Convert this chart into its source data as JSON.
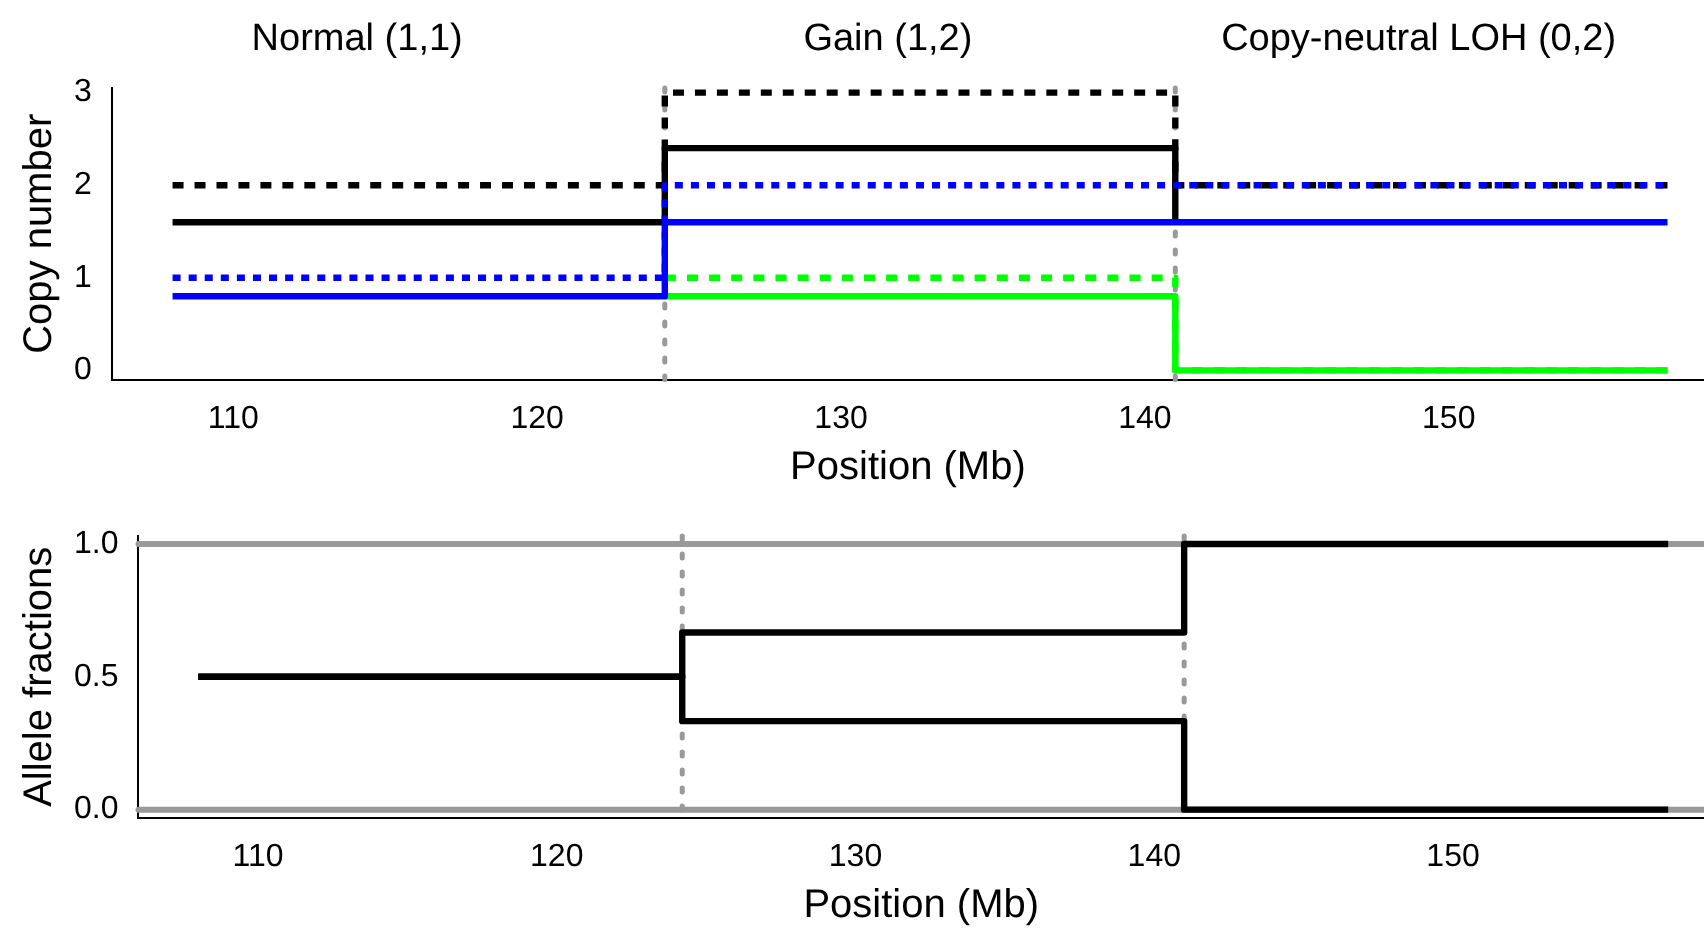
{
  "chart_data": [
    {
      "type": "step",
      "xlabel": "Position (Mb)",
      "ylabel": "Copy number",
      "xlim": [
        106,
        158.4
      ],
      "xticks": [
        110,
        120,
        130,
        140,
        150
      ],
      "ylim": [
        -0.1,
        3.05
      ],
      "yticks": [
        0,
        1,
        2,
        3
      ],
      "grid": false,
      "legend": false,
      "marker": "none",
      "annotations": [
        "Normal (1,1)",
        "Gain (1,2)",
        "Copy-neutral LOH (0,2)"
      ],
      "ref_lines": [
        {
          "axis": "x",
          "value": 124.2,
          "color": "#999999",
          "line_style": "dotted"
        },
        {
          "axis": "x",
          "value": 141,
          "color": "#999999",
          "line_style": "dotted"
        }
      ],
      "series": [
        {
          "color": "#000000",
          "line_style": "dashed",
          "x": [
            108,
            124.2,
            141,
            157.2
          ],
          "values": [
            2,
            3,
            2,
            2
          ]
        },
        {
          "color": "#000000",
          "line_style": "solid",
          "x": [
            108,
            124.2,
            141
          ],
          "values": [
            1.6,
            2.4,
            1.6
          ]
        },
        {
          "color": "#00ff00",
          "line_style": "dashed",
          "x": [
            124.2,
            141,
            157.2
          ],
          "values": [
            1,
            0,
            0
          ]
        },
        {
          "color": "#00ff00",
          "line_style": "solid",
          "x": [
            124.2,
            141,
            157.2
          ],
          "values": [
            0.8,
            0,
            0
          ]
        },
        {
          "color": "#0000ff",
          "line_style": "dashed",
          "x": [
            108,
            124.2,
            141,
            157.2
          ],
          "values": [
            1,
            2,
            2,
            2
          ]
        },
        {
          "color": "#0000ff",
          "line_style": "solid",
          "x": [
            108,
            124.2,
            141,
            157.2
          ],
          "values": [
            0.8,
            1.6,
            1.6,
            1.6
          ]
        }
      ]
    },
    {
      "type": "step",
      "xlabel": "Position (Mb)",
      "ylabel": "Allele fractions",
      "xlim": [
        106,
        158.4
      ],
      "xticks": [
        110,
        120,
        130,
        140,
        150
      ],
      "ylim": [
        -0.03,
        1.03
      ],
      "yticks": [
        {
          "value": 0,
          "label": "0.0"
        },
        0.5,
        {
          "value": 1,
          "label": "1.0"
        }
      ],
      "grid": false,
      "legend": false,
      "marker": "none",
      "ref_lines": [
        {
          "axis": "y",
          "value": 0,
          "color": "#999999",
          "line_style": "solid"
        },
        {
          "axis": "y",
          "value": 1,
          "color": "#999999",
          "line_style": "solid"
        },
        {
          "axis": "x",
          "value": 124.2,
          "color": "#999999",
          "line_style": "dotted"
        },
        {
          "axis": "x",
          "value": 141,
          "color": "#999999",
          "line_style": "dotted"
        }
      ],
      "series": [
        {
          "color": "#000000",
          "line_style": "solid",
          "x": [
            108,
            124.2,
            141,
            157.2
          ],
          "values": [
            0.5,
            0.667,
            1,
            1
          ]
        },
        {
          "color": "#000000",
          "line_style": "solid",
          "x": [
            108,
            124.2,
            141,
            157.2
          ],
          "values": [
            0.5,
            0.333,
            0,
            0
          ]
        }
      ]
    }
  ]
}
